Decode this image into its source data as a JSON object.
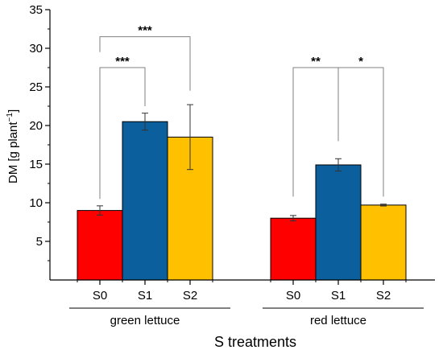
{
  "chart_data": {
    "type": "bar",
    "xlabel": "S treatments",
    "ylabel_main": "DM [g plant",
    "ylabel_sup": "−1",
    "ylabel_end": "]",
    "ylim": [
      0,
      35
    ],
    "yticks": [
      5,
      10,
      15,
      20,
      25,
      30,
      35
    ],
    "groups": [
      {
        "name": "green lettuce",
        "categories": [
          "S0",
          "S1",
          "S2"
        ],
        "values": [
          9.0,
          20.5,
          18.5
        ],
        "errors": [
          0.6,
          1.1,
          4.2
        ]
      },
      {
        "name": "red lettuce",
        "categories": [
          "S0",
          "S1",
          "S2"
        ],
        "values": [
          8.0,
          14.9,
          9.7
        ],
        "errors": [
          0.35,
          0.8,
          0.12
        ]
      }
    ],
    "category_colors": {
      "S0": "#ff0000",
      "S1": "#0b5f9c",
      "S2": "#ffc000"
    },
    "significance": [
      {
        "group": 0,
        "from": 0,
        "to": 1,
        "label": "***",
        "y": 27.5,
        "left_drop_to": 10.5,
        "right_drop_to": 22.5
      },
      {
        "group": 0,
        "from": 0,
        "to": 2,
        "label": "***",
        "y": 31.5,
        "left_drop_to": 29.5,
        "right_drop_to": 24.5
      },
      {
        "group": 1,
        "from": 0,
        "to": 1,
        "label": "**",
        "y": 27.5,
        "left_drop_to": 10.8,
        "right_drop_to": 18.0
      },
      {
        "group": 1,
        "from": 1,
        "to": 2,
        "label": "*",
        "y": 27.5,
        "left_drop_to": 18.0,
        "right_drop_to": 10.8
      }
    ]
  }
}
